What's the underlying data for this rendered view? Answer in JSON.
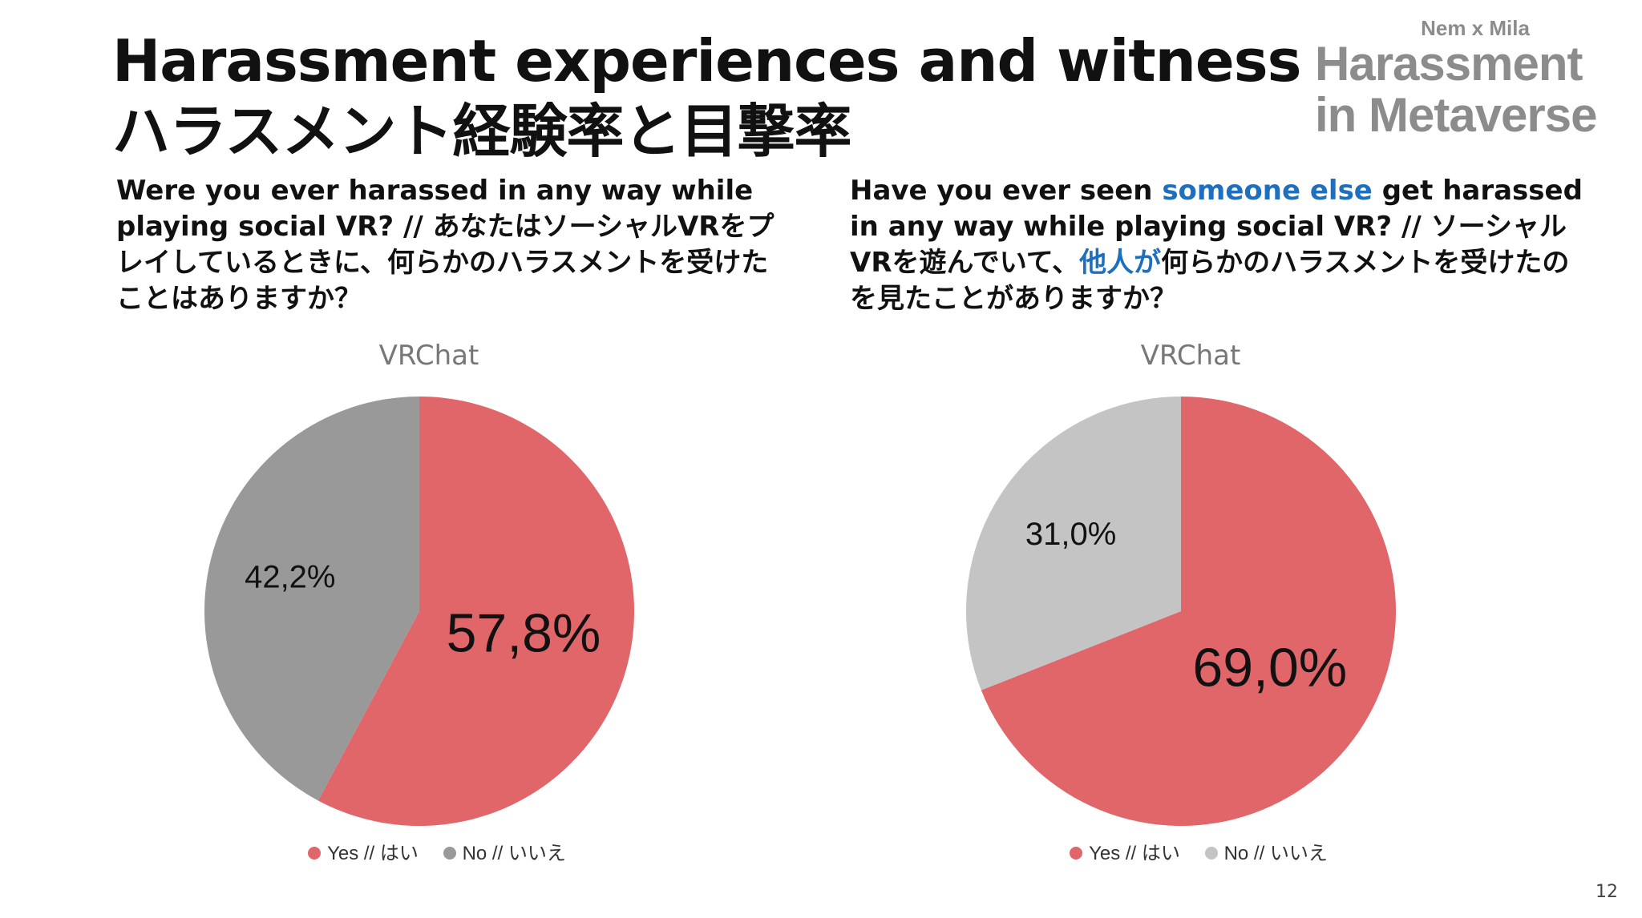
{
  "slide": {
    "title_line1": "Harassment experiences and witness",
    "title_line2": "ハラスメント経験率と目撃率",
    "logo_small": "Nem x Mila",
    "logo_line1": "Harassment",
    "logo_line2": "in Metaverse",
    "page_number": "12"
  },
  "questions": {
    "left": "Were you ever harassed in any way while playing social VR? // あなたはソーシャルVRをプレイしているときに、何らかのハラスメントを受けたことはありますか？",
    "right": {
      "part1": "Have you ever seen ",
      "highlight1": "someone else",
      "part2": " get harassed in any way while playing social VR? // ソーシャルVRを遊んでいて、",
      "highlight2": "他人が",
      "part3": "何らかのハラスメントを受けたのを見たことがありますか？"
    }
  },
  "colors": {
    "yes": "#e0666a",
    "no_left": "#999999",
    "no_right": "#c4c4c4",
    "highlight": "#1f6fbf"
  },
  "chart_data": [
    {
      "type": "pie",
      "title": "VRChat",
      "categories": [
        "Yes // はい",
        "No // いいえ"
      ],
      "values": [
        57.8,
        42.2
      ],
      "labels": [
        "57,8%",
        "42,2%"
      ],
      "colors": [
        "#e0666a",
        "#999999"
      ],
      "legend": "bottom"
    },
    {
      "type": "pie",
      "title": "VRChat",
      "categories": [
        "Yes // はい",
        "No // いいえ"
      ],
      "values": [
        69.0,
        31.0
      ],
      "labels": [
        "69,0%",
        "31,0%"
      ],
      "colors": [
        "#e0666a",
        "#c4c4c4"
      ],
      "legend": "bottom"
    }
  ]
}
